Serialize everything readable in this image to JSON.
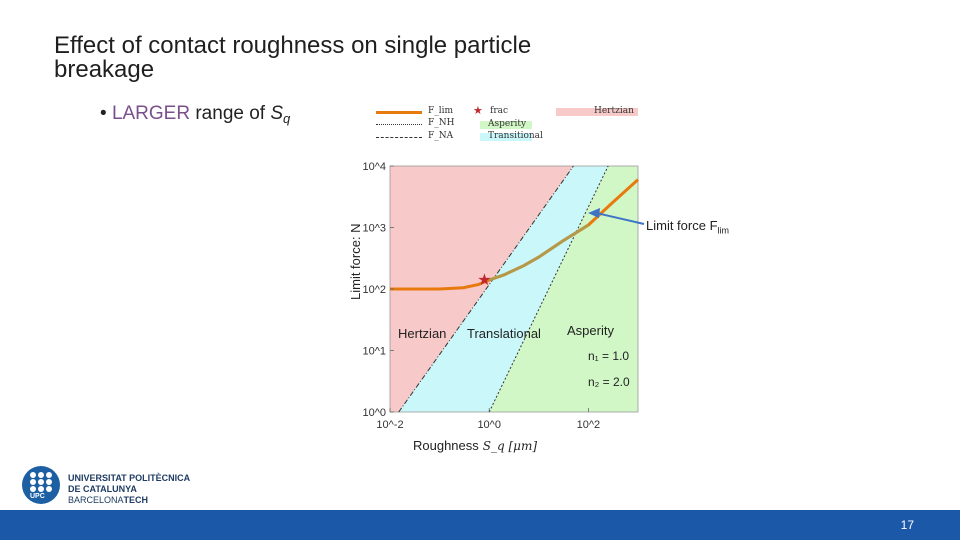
{
  "slide": {
    "title": "Effect of contact roughness on single particle breakage",
    "bullet_prefix": "•",
    "bullet_highlight": "LARGER",
    "bullet_rest": " range of ",
    "bullet_symbol": "S",
    "bullet_subscript": "q",
    "page_number": "17"
  },
  "logo": {
    "line1": "UNIVERSITAT POLITÈCNICA",
    "line2": "DE CATALUNYA",
    "line3_a": "BARCELONA",
    "line3_b": "TECH",
    "badge": "UPC"
  },
  "legend": {
    "flim": "F_lim",
    "fnh": "F_NH",
    "fna": "F_NA",
    "frac": "frac",
    "asperity": "Asperity",
    "transitional": "Transitional",
    "hertzian": "Hertzian"
  },
  "annotations": {
    "hertzian": "Hertzian",
    "translational": "Translational",
    "asperity": "Asperity",
    "limit_force": "Limit force F",
    "limit_force_sub": "lim",
    "ylabel": "Limit force: N",
    "xlabel": "Roughness",
    "xunit": "S_q [μm]",
    "n1": "n₁ = 1.0",
    "n2": "n₂ = 2.0"
  },
  "colors": {
    "hertzian": "#f7c9c9",
    "transitional": "#c9f7fa",
    "asperity": "#d2f7c6",
    "flim": "#e8790e",
    "flim_overlay": "#b39a4a",
    "frac": "#c0282d",
    "arrow": "#3d74c5",
    "footer": "#1b59a8"
  },
  "chart_data": {
    "type": "line",
    "x_scale": "log",
    "y_scale": "log",
    "xlim": [
      0.01,
      1000
    ],
    "ylim": [
      1,
      10000
    ],
    "x_ticks": [
      "10^-2",
      "10^0",
      "10^2"
    ],
    "y_ticks": [
      "10^0",
      "10^1",
      "10^2",
      "10^3",
      "10^4"
    ],
    "regions": [
      {
        "name": "Hertzian",
        "x_from": 0.01,
        "x_to": "F_NH boundary"
      },
      {
        "name": "Transitional",
        "x_from": "F_NH boundary",
        "x_to": "F_NA boundary"
      },
      {
        "name": "Asperity",
        "x_from": "F_NA boundary",
        "x_to": 1000
      }
    ],
    "series": [
      {
        "name": "F_lim",
        "x": [
          0.01,
          0.1,
          0.3,
          0.6,
          1,
          2,
          5,
          10,
          30,
          100,
          300,
          1000
        ],
        "y": [
          100,
          100,
          105,
          118,
          140,
          170,
          240,
          330,
          600,
          1100,
          2500,
          6000
        ]
      },
      {
        "name": "F_NH",
        "x": [
          0.015,
          50
        ],
        "y": [
          1,
          10000
        ]
      },
      {
        "name": "F_NA",
        "x": [
          1,
          250
        ],
        "y": [
          1,
          10000
        ]
      }
    ],
    "frac_point": {
      "x": 0.8,
      "y": 140
    }
  }
}
